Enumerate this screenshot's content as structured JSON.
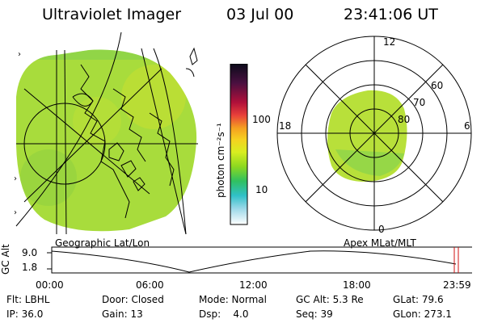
{
  "header": {
    "title": "Ultraviolet Imager",
    "date": "03 Jul 00",
    "time": "23:41:06 UT"
  },
  "colorbar": {
    "unit_label": "photon cm⁻²s⁻¹",
    "ticks": [
      "100",
      "10"
    ],
    "colors": [
      "#0b0b1a",
      "#4a1040",
      "#b0103a",
      "#e8403a",
      "#f5a020",
      "#f5d020",
      "#d8ee20",
      "#8cd820",
      "#30c060",
      "#30c0c8",
      "#9ad8e8",
      "#e8f0f4",
      "#ffffff"
    ]
  },
  "left_panel": {
    "caption": "Geographic Lat/Lon",
    "edge_marks": [
      "›",
      "›",
      "›"
    ]
  },
  "right_panel": {
    "caption": "Apex MLat/MLT",
    "mlt_labels": {
      "top": "12",
      "left": "18",
      "right": "6",
      "bottom": "0"
    },
    "lat_labels": [
      "60",
      "70",
      "80"
    ]
  },
  "timeline": {
    "axis_title": "GC Alt",
    "y_ticks": [
      "9.0",
      "1.8"
    ],
    "x_ticks": [
      "00:00",
      "06:00",
      "12:00",
      "18:00",
      "23:59"
    ]
  },
  "status": {
    "row1": {
      "flt": "Flt: LBHL",
      "door": "Door: Closed",
      "mode": "Mode: Normal",
      "gcalt": "GC Alt: 5.3 Re",
      "glat": "GLat: 79.6"
    },
    "row2": {
      "ip": "IP: 36.0",
      "gain": "Gain: 13",
      "dsp": "Dsp:    4.0",
      "seq": "Seq: 39",
      "glon": "GLon: 273.1"
    }
  },
  "accent_colors": {
    "marker": "#d01010",
    "image_green": "#a8dc3c"
  }
}
